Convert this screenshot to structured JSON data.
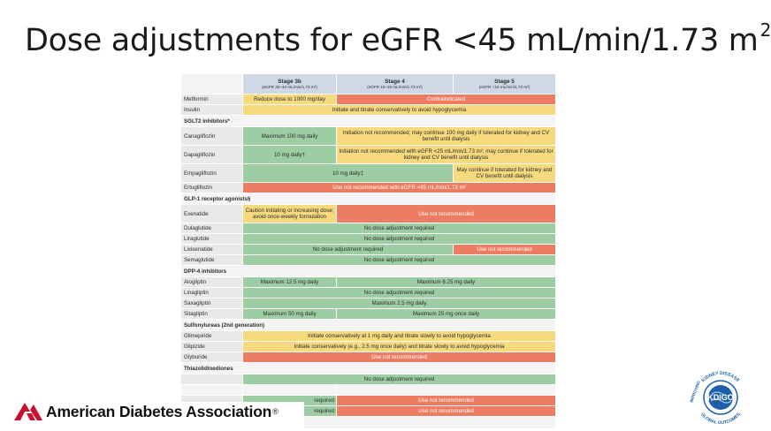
{
  "title": "Dose adjustments for eGFR <45 mL/min/1.73 m",
  "title_sup": "2",
  "header": {
    "stages": [
      {
        "name": "Stage 3b",
        "range": "(eGFR 30–44 mL/min/1.73 m²)"
      },
      {
        "name": "Stage 4",
        "range": "(eGFR 15–29 mL/min/1.73 m²)"
      },
      {
        "name": "Stage 5",
        "range": "(eGFR <15 mL/min/1.73 m²)"
      }
    ]
  },
  "rows": {
    "metformin": {
      "drug": "Metformin",
      "c1": "Reduce dose to 1000 mg/day",
      "c2": "Contraindicated"
    },
    "insulin": {
      "drug": "Insulin",
      "c1": "Initiate and titrate conservatively to avoid hypoglycemia"
    },
    "sglt2": {
      "label": "SGLT2 inhibitors*"
    },
    "canagliflozin": {
      "drug": "Canagliflozin",
      "c1": "Maximum 100 mg daily",
      "c2": "Initiation not recommended; may continue 100 mg daily if tolerated for kidney and CV benefit until dialysis"
    },
    "dapagliflozin": {
      "drug": "Dapagliflozin",
      "c1": "10 mg daily†",
      "c2": "Initiation not recommended with eGFR <25 mL/min/1.73 m²; may continue if tolerated for kidney and CV benefit until dialysis"
    },
    "empagliflozin": {
      "drug": "Empagliflozin",
      "c1": "10 mg daily‡",
      "c2": "May continue if tolerated for kidney and CV benefit until dialysis"
    },
    "ertugliflozin": {
      "drug": "Ertugliflozin",
      "c1": "Use not recommended with eGFR <45 mL/min/1.73 m²"
    },
    "glp1": {
      "label": "GLP-1 receptor agonists§"
    },
    "exenatide": {
      "drug": "Exenatide",
      "c1": "Caution initiating or increasing dose; avoid once-weekly formulation",
      "c2": "Use not recommended"
    },
    "dulaglutide": {
      "drug": "Dulaglutide",
      "c1": "No dose adjustment required"
    },
    "liraglutide": {
      "drug": "Liraglutide",
      "c1": "No dose adjustment required"
    },
    "lixisenatide": {
      "drug": "Lixisenatide",
      "c1": "No dose adjustment required",
      "c2": "Use not recommended"
    },
    "semaglutide": {
      "drug": "Semaglutide",
      "c1": "No dose adjustment required"
    },
    "dpp4": {
      "label": "DPP-4 inhibitors"
    },
    "alogliptin": {
      "drug": "Alogliptin",
      "c1": "Maximum 12.5 mg daily",
      "c2": "Maximum 6.25 mg daily"
    },
    "linagliptin": {
      "drug": "Linagliptin",
      "c1": "No dose adjustment required"
    },
    "saxagliptin": {
      "drug": "Saxagliptin",
      "c1": "Maximum 2.5 mg daily"
    },
    "sitagliptin": {
      "drug": "Sitagliptin",
      "c1": "Maximum 50 mg daily",
      "c2": "Maximum 25 mg once daily"
    },
    "sulfonylureas": {
      "label": "Sulfonylureas (2nd generation)"
    },
    "glimepiride": {
      "drug": "Glimepiride",
      "c1": "Initiate conservatively at 1 mg daily and titrate slowly to avoid hypoglycemia"
    },
    "glipizide": {
      "drug": "Glipizide",
      "c1": "Initiate conservatively (e.g., 2.5 mg once daily) and titrate slowly to avoid hypoglycemia"
    },
    "glyburide": {
      "drug": "Glyburide",
      "c1": "Use not recommended"
    },
    "tzd": {
      "label": "Thiazolidinediones"
    },
    "tzd_row": {
      "c1": "No dose adjustment required"
    },
    "partial1": {
      "c1": "required",
      "c2": "Use not recommended"
    },
    "partial2": {
      "c1": "required",
      "c2": "Use not recommended"
    }
  },
  "ada": {
    "name": "American Diabetes Association",
    "mark": "®"
  },
  "kdigo": {
    "text": "KDIGO",
    "arc_top": "KIDNEY DISEASE",
    "arc_left": "IMPROVING",
    "arc_bottom": "GLOBAL OUTCOMES"
  },
  "colors": {
    "green": "#9ccda3",
    "yellow": "#f7d97e",
    "red": "#ec7d62",
    "header": "#cfd9e6",
    "ada_red": "#c8102e",
    "kdigo_blue": "#1f5fa8"
  }
}
